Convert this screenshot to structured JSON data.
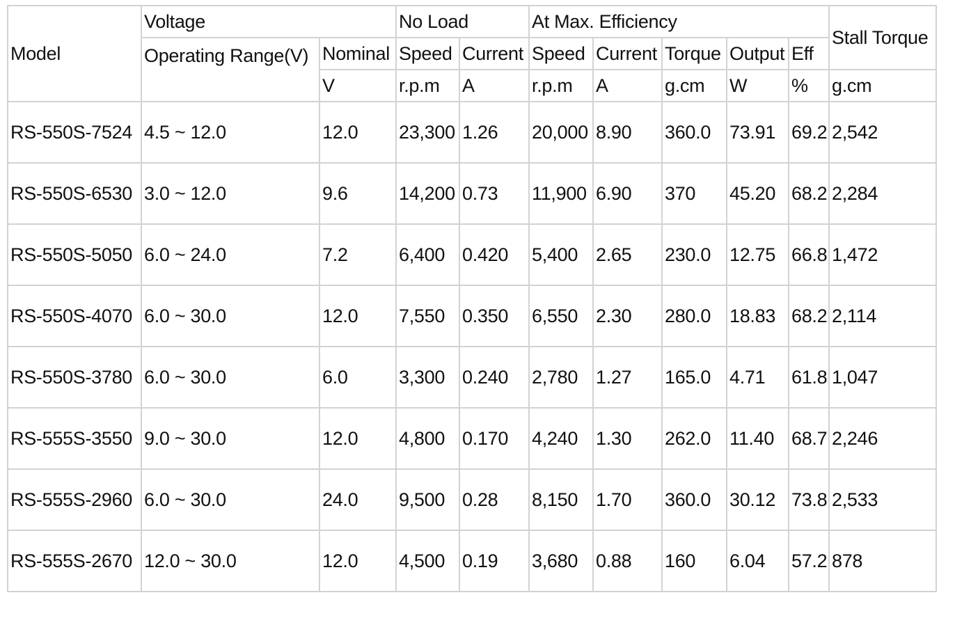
{
  "table": {
    "group_headers": {
      "model": "Model",
      "voltage": "Voltage",
      "no_load": "No Load",
      "max_eff": "At Max. Efficiency",
      "stall_torque": "Stall Torque"
    },
    "sub_headers": {
      "operating_range": "Operating Range(V)",
      "nominal": "Nominal",
      "nl_speed": "Speed",
      "nl_current": "Current",
      "me_speed": "Speed",
      "me_current": "Current",
      "me_torque": "Torque",
      "me_output": "Output",
      "me_eff": "Eff"
    },
    "units": {
      "nominal": "V",
      "nl_speed": "r.p.m",
      "nl_current": "A",
      "me_speed": "r.p.m",
      "me_current": "A",
      "me_torque": "g.cm",
      "me_output": "W",
      "me_eff": "%",
      "stall_torque": "g.cm"
    },
    "rows": [
      {
        "model": "RS-550S-7524",
        "range": "4.5 ~ 12.0",
        "nominal": "12.0",
        "nl_speed": "23,300",
        "nl_current": "1.26",
        "me_speed": "20,000",
        "me_current": "8.90",
        "me_torque": "360.0",
        "me_output": "73.91",
        "me_eff": "69.2",
        "stall": "2,542"
      },
      {
        "model": "RS-550S-6530",
        "range": "3.0 ~ 12.0",
        "nominal": "9.6",
        "nl_speed": "14,200",
        "nl_current": "0.73",
        "me_speed": "11,900",
        "me_current": "6.90",
        "me_torque": "370",
        "me_output": "45.20",
        "me_eff": "68.2",
        "stall": "2,284"
      },
      {
        "model": "RS-550S-5050",
        "range": "6.0 ~ 24.0",
        "nominal": "7.2",
        "nl_speed": "6,400",
        "nl_current": "0.420",
        "me_speed": "5,400",
        "me_current": "2.65",
        "me_torque": "230.0",
        "me_output": "12.75",
        "me_eff": "66.8",
        "stall": "1,472"
      },
      {
        "model": "RS-550S-4070",
        "range": "6.0 ~ 30.0",
        "nominal": "12.0",
        "nl_speed": "7,550",
        "nl_current": "0.350",
        "me_speed": "6,550",
        "me_current": "2.30",
        "me_torque": "280.0",
        "me_output": "18.83",
        "me_eff": "68.2",
        "stall": "2,114"
      },
      {
        "model": "RS-550S-3780",
        "range": "6.0 ~ 30.0",
        "nominal": "6.0",
        "nl_speed": "3,300",
        "nl_current": "0.240",
        "me_speed": "2,780",
        "me_current": "1.27",
        "me_torque": "165.0",
        "me_output": "4.71",
        "me_eff": "61.8",
        "stall": "1,047"
      },
      {
        "model": "RS-555S-3550",
        "range": "9.0 ~ 30.0",
        "nominal": "12.0",
        "nl_speed": "4,800",
        "nl_current": "0.170",
        "me_speed": "4,240",
        "me_current": "1.30",
        "me_torque": "262.0",
        "me_output": "11.40",
        "me_eff": "68.7",
        "stall": "2,246"
      },
      {
        "model": "RS-555S-2960",
        "range": "6.0 ~ 30.0",
        "nominal": "24.0",
        "nl_speed": "9,500",
        "nl_current": "0.28",
        "me_speed": "8,150",
        "me_current": "1.70",
        "me_torque": "360.0",
        "me_output": "30.12",
        "me_eff": "73.8",
        "stall": "2,533"
      },
      {
        "model": "RS-555S-2670",
        "range": "12.0 ~ 30.0",
        "nominal": "12.0",
        "nl_speed": "4,500",
        "nl_current": "0.19",
        "me_speed": "3,680",
        "me_current": "0.88",
        "me_torque": "160",
        "me_output": "6.04",
        "me_eff": "57.2",
        "stall": "878"
      }
    ]
  }
}
